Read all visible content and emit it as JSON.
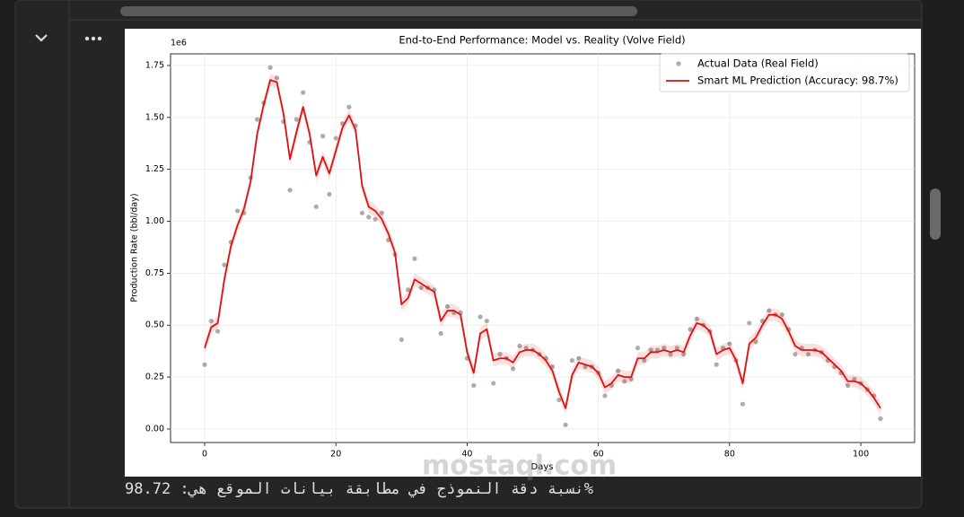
{
  "ui": {
    "result_text": "نسبة دقة النموذج في مطابقة بيانات الموقع هي: 98.72%",
    "watermark": "mostaql.com"
  },
  "chart_data": {
    "type": "line",
    "title": "End-to-End Performance: Model vs. Reality (Volve Field)",
    "x_label": "Days",
    "y_label": "Production Rate (bbl/day)",
    "y_offset_label": "1e6",
    "x": [
      0,
      1,
      2,
      3,
      4,
      5,
      6,
      7,
      8,
      9,
      10,
      11,
      12,
      13,
      14,
      15,
      16,
      17,
      18,
      19,
      20,
      21,
      22,
      23,
      24,
      25,
      26,
      27,
      28,
      29,
      30,
      31,
      32,
      33,
      34,
      35,
      36,
      37,
      38,
      39,
      40,
      41,
      42,
      43,
      44,
      45,
      46,
      47,
      48,
      49,
      50,
      51,
      52,
      53,
      54,
      55,
      56,
      57,
      58,
      59,
      60,
      61,
      62,
      63,
      64,
      65,
      66,
      67,
      68,
      69,
      70,
      71,
      72,
      73,
      74,
      75,
      76,
      77,
      78,
      79,
      80,
      81,
      82,
      83,
      84,
      85,
      86,
      87,
      88,
      89,
      90,
      91,
      92,
      93,
      94,
      95,
      96,
      97,
      98,
      99,
      100,
      101,
      102,
      103
    ],
    "series": [
      {
        "name": "Actual Data (Real Field)",
        "mark": "scatter",
        "color": "#808080",
        "values": [
          0.31,
          0.52,
          0.47,
          0.79,
          0.9,
          1.05,
          1.04,
          1.21,
          1.49,
          1.57,
          1.74,
          1.69,
          1.48,
          1.15,
          1.49,
          1.62,
          1.38,
          1.07,
          1.41,
          1.13,
          1.4,
          1.47,
          1.55,
          1.46,
          1.04,
          1.02,
          1.01,
          1.04,
          0.91,
          0.84,
          0.43,
          0.67,
          0.82,
          0.68,
          0.68,
          0.67,
          0.46,
          0.59,
          0.56,
          0.56,
          0.34,
          0.21,
          0.54,
          0.52,
          0.22,
          0.36,
          0.34,
          0.29,
          0.4,
          0.39,
          0.38,
          0.36,
          0.34,
          0.3,
          0.14,
          0.02,
          0.33,
          0.34,
          0.3,
          0.3,
          0.27,
          0.16,
          0.21,
          0.28,
          0.23,
          0.24,
          0.39,
          0.33,
          0.38,
          0.38,
          0.39,
          0.36,
          0.39,
          0.36,
          0.48,
          0.53,
          0.5,
          0.47,
          0.31,
          0.39,
          0.41,
          0.33,
          0.12,
          0.51,
          0.42,
          0.52,
          0.57,
          0.55,
          0.55,
          0.48,
          0.36,
          0.39,
          0.36,
          0.38,
          0.37,
          0.33,
          0.3,
          0.27,
          0.21,
          0.24,
          0.22,
          0.19,
          0.16,
          0.05
        ]
      },
      {
        "name": "Smart ML Prediction (Accuracy: 98.7%)",
        "mark": "line",
        "color": "#dd1111",
        "values": [
          0.39,
          0.49,
          0.51,
          0.72,
          0.88,
          0.98,
          1.06,
          1.19,
          1.42,
          1.56,
          1.68,
          1.67,
          1.52,
          1.3,
          1.43,
          1.55,
          1.42,
          1.22,
          1.31,
          1.23,
          1.34,
          1.45,
          1.51,
          1.44,
          1.17,
          1.07,
          1.05,
          1.01,
          0.94,
          0.85,
          0.6,
          0.63,
          0.72,
          0.7,
          0.68,
          0.66,
          0.52,
          0.57,
          0.57,
          0.55,
          0.37,
          0.27,
          0.46,
          0.48,
          0.33,
          0.34,
          0.34,
          0.32,
          0.37,
          0.38,
          0.38,
          0.36,
          0.33,
          0.28,
          0.18,
          0.1,
          0.26,
          0.32,
          0.31,
          0.3,
          0.27,
          0.2,
          0.22,
          0.26,
          0.25,
          0.25,
          0.34,
          0.34,
          0.37,
          0.37,
          0.38,
          0.37,
          0.38,
          0.37,
          0.45,
          0.51,
          0.5,
          0.47,
          0.36,
          0.38,
          0.39,
          0.33,
          0.22,
          0.41,
          0.44,
          0.5,
          0.55,
          0.55,
          0.53,
          0.47,
          0.4,
          0.38,
          0.38,
          0.38,
          0.37,
          0.34,
          0.31,
          0.28,
          0.23,
          0.23,
          0.22,
          0.19,
          0.15,
          0.1
        ]
      }
    ],
    "xlim": [
      -5.2,
      108.2
    ],
    "ylim": [
      -0.065,
      1.806
    ],
    "xticks": [
      0,
      20,
      40,
      60,
      80,
      100
    ],
    "yticks": [
      {
        "value": 0,
        "label": "0.00"
      },
      {
        "value": 0.25,
        "label": "0.25"
      },
      {
        "value": 0.5,
        "label": "0.50"
      },
      {
        "value": 0.75,
        "label": "0.75"
      },
      {
        "value": 1,
        "label": "1.00"
      },
      {
        "value": 1.25,
        "label": "1.25"
      },
      {
        "value": 1.5,
        "label": "1.50"
      },
      {
        "value": 1.75,
        "label": "1.75"
      }
    ],
    "grid": true,
    "legend": "upper right"
  }
}
